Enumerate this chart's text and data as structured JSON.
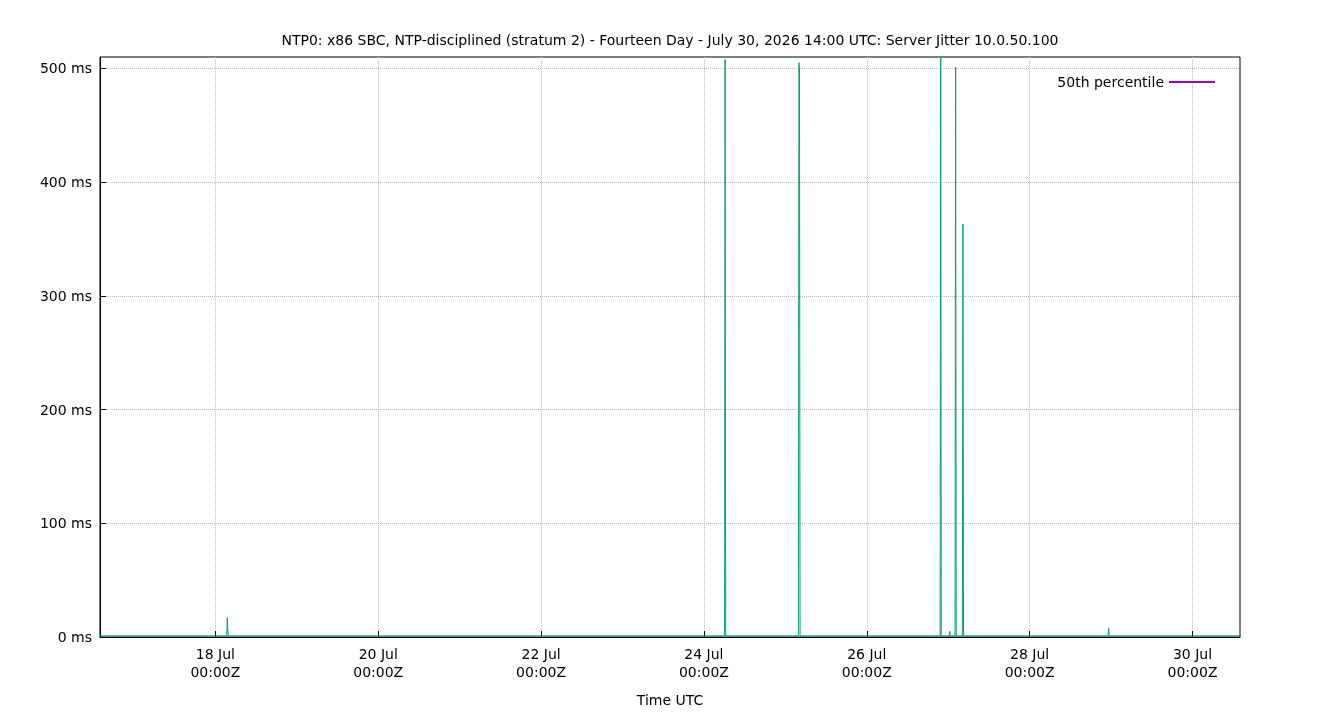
{
  "chart_data": {
    "type": "line",
    "title": "NTP0: x86 SBC, NTP-disciplined (stratum 2) - Fourteen Day - July 30, 2026 14:00 UTC: Server Jitter 10.0.50.100",
    "xlabel": "Time UTC",
    "xlim": [
      "2026-07-16T14:00",
      "2026-07-30T14:00"
    ],
    "xticks": [
      {
        "value": "2026-07-18",
        "label": "18 Jul\n00:00Z"
      },
      {
        "value": "2026-07-20",
        "label": "20 Jul\n00:00Z"
      },
      {
        "value": "2026-07-22",
        "label": "22 Jul\n00:00Z"
      },
      {
        "value": "2026-07-24",
        "label": "24 Jul\n00:00Z"
      },
      {
        "value": "2026-07-26",
        "label": "26 Jul\n00:00Z"
      },
      {
        "value": "2026-07-28",
        "label": "28 Jul\n00:00Z"
      },
      {
        "value": "2026-07-30",
        "label": "30 Jul\n00:00Z"
      }
    ],
    "ylim": [
      0,
      510
    ],
    "yticks": [
      {
        "value": 0,
        "label": "0 ms"
      },
      {
        "value": 100,
        "label": "100 ms"
      },
      {
        "value": 200,
        "label": "200 ms"
      },
      {
        "value": 300,
        "label": "300 ms"
      },
      {
        "value": 400,
        "label": "400 ms"
      },
      {
        "value": 500,
        "label": "500 ms"
      }
    ],
    "grid": true,
    "legend": "top right",
    "marker": "none",
    "line_style": "solid",
    "series": [
      {
        "color": "#009e73",
        "x": [
          "2026-07-16T14:00",
          "2026-07-17T00:00",
          "2026-07-17T12:00",
          "2026-07-18T00:00",
          "2026-07-18T03:20",
          "2026-07-18T03:32",
          "2026-07-18T03:44",
          "2026-07-18T12:00",
          "2026-07-19T00:00",
          "2026-07-19T12:00",
          "2026-07-20T00:00",
          "2026-07-20T12:00",
          "2026-07-21T00:00",
          "2026-07-21T12:00",
          "2026-07-22T00:00",
          "2026-07-22T12:00",
          "2026-07-23T00:00",
          "2026-07-23T12:00",
          "2026-07-24T00:00",
          "2026-07-24T06:05",
          "2026-07-24T06:15",
          "2026-07-24T06:25",
          "2026-07-24T12:00",
          "2026-07-25T00:00",
          "2026-07-25T03:50",
          "2026-07-25T04:00",
          "2026-07-25T04:10",
          "2026-07-25T04:20",
          "2026-07-25T12:00",
          "2026-07-26T00:00",
          "2026-07-26T12:00",
          "2026-07-26T21:37",
          "2026-07-26T21:47",
          "2026-07-26T21:57",
          "2026-07-27T00:17",
          "2026-07-27T00:27",
          "2026-07-27T00:37",
          "2026-07-27T02:01",
          "2026-07-27T02:11",
          "2026-07-27T02:21",
          "2026-07-27T04:10",
          "2026-07-27T04:20",
          "2026-07-27T04:30",
          "2026-07-27T12:00",
          "2026-07-28T00:00",
          "2026-07-28T12:00",
          "2026-07-28T23:06",
          "2026-07-28T23:16",
          "2026-07-28T23:26",
          "2026-07-29T00:00",
          "2026-07-29T12:00",
          "2026-07-30T00:00",
          "2026-07-30T14:00"
        ],
        "values": [
          1,
          1,
          1,
          1,
          1,
          17,
          1,
          1,
          1,
          1,
          1,
          1,
          1,
          1,
          1,
          1,
          1,
          1,
          1,
          1,
          508,
          1,
          1,
          1,
          1,
          505,
          500,
          1,
          1,
          1,
          1,
          1,
          510,
          1,
          1,
          5,
          1,
          1,
          501,
          1,
          1,
          363,
          1,
          1,
          1,
          1,
          1,
          8,
          1,
          1,
          1,
          1,
          1
        ]
      },
      {
        "name": "50th percentile",
        "color": "#9400d3"
      }
    ]
  }
}
